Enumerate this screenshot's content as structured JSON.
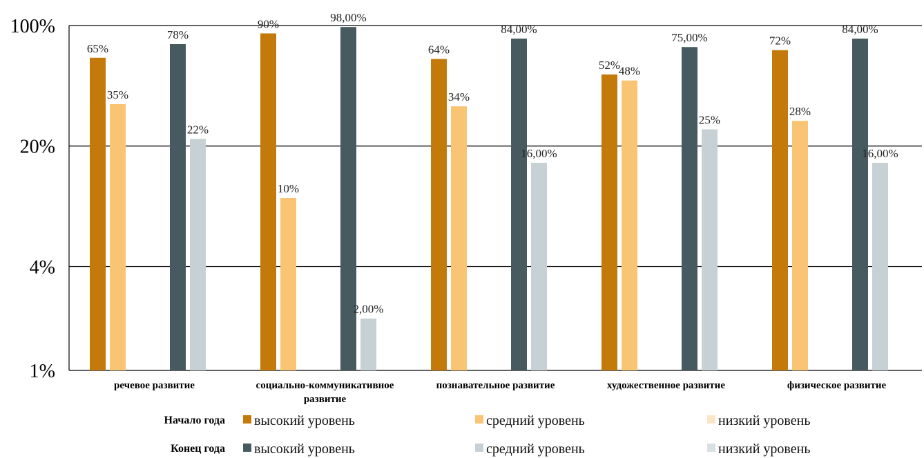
{
  "chart_data": {
    "type": "bar",
    "y_scale": "log",
    "ylim": [
      1,
      100
    ],
    "y_ticks": [
      {
        "value": 1,
        "label": "1%"
      },
      {
        "value": 4,
        "label": "4%"
      },
      {
        "value": 20,
        "label": "20%"
      },
      {
        "value": 100,
        "label": "100%"
      }
    ],
    "grid": true,
    "categories": [
      [
        "речевое развитие"
      ],
      [
        "социально-коммуникативное",
        "развитие"
      ],
      [
        "познавательное развитие"
      ],
      [
        "художественное развитие"
      ],
      [
        "физическое развитие"
      ]
    ],
    "groups": [
      {
        "title": "Начало года",
        "series": [
          {
            "name": "высокий уровень",
            "color": "#C47A0A",
            "values": [
              65,
              90,
              64,
              52,
              72
            ],
            "labels": [
              "65%",
              "90%",
              "64%",
              "52%",
              "72%"
            ]
          },
          {
            "name": "средний уровень",
            "color": "#F9C574",
            "values": [
              35,
              10,
              34,
              48,
              28
            ],
            "labels": [
              "35%",
              "10%",
              "34%",
              "48%",
              "28%"
            ]
          },
          {
            "name": "низкий уровень",
            "color": "#FBE5C6",
            "values": [
              null,
              null,
              null,
              null,
              null
            ],
            "labels": [
              "",
              "",
              "",
              "",
              ""
            ]
          }
        ]
      },
      {
        "title": "Конец года",
        "series": [
          {
            "name": "высокий уровень",
            "color": "#465A60",
            "values": [
              78,
              98,
              84,
              75,
              84
            ],
            "labels": [
              "78%",
              "98,00%",
              "84,00%",
              "75,00%",
              "84,00%"
            ]
          },
          {
            "name": "средний уровень",
            "color": "#C7D0D4",
            "values": [
              22,
              2,
              16,
              25,
              16
            ],
            "labels": [
              "22%",
              "2,00%",
              "16,00%",
              "25%",
              "16,00%"
            ]
          },
          {
            "name": "низкий уровень",
            "color": "#D9E0E3",
            "values": [
              null,
              null,
              null,
              null,
              null
            ],
            "labels": [
              "",
              "",
              "",
              "",
              ""
            ]
          }
        ]
      }
    ],
    "legend_position": "bottom"
  }
}
